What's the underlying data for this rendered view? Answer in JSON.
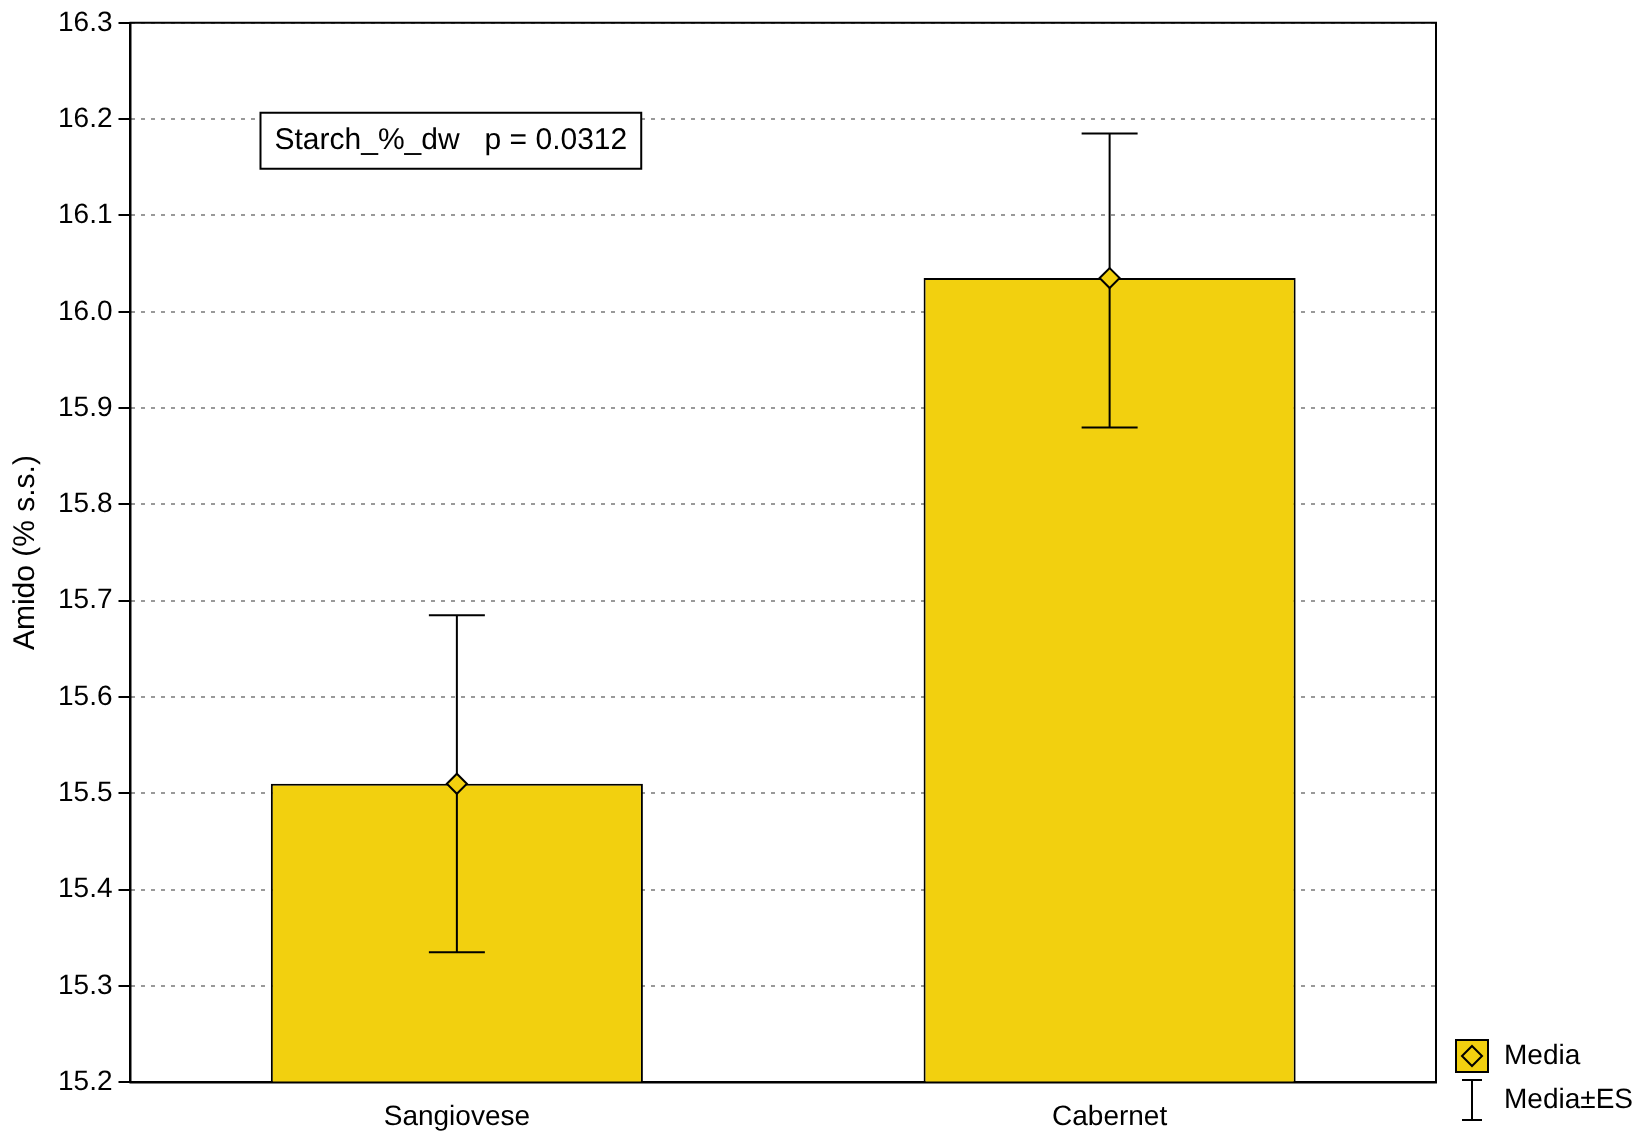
{
  "chart_data": {
    "type": "bar",
    "ylabel": "Amido (% s.s.)",
    "categories": [
      "Sangiovese",
      "Cabernet"
    ],
    "series": [
      {
        "name": "Media",
        "color": "#f2d00f",
        "values": [
          15.51,
          16.035
        ],
        "errors": [
          [
            15.335,
            15.685
          ],
          [
            15.88,
            16.185
          ]
        ]
      },
      {
        "type": "scatter",
        "color": "#f2d00f",
        "x": [
          "Sangiovese",
          "Cabernet"
        ],
        "values": [
          15.51,
          16.035
        ]
      }
    ],
    "ylim": [
      15.2,
      16.3
    ],
    "yticks": [
      15.2,
      15.3,
      15.4,
      15.5,
      15.6,
      15.7,
      15.8,
      15.9,
      {
        "value": 16,
        "label": "16.0"
      },
      16.1,
      16.2,
      16.3
    ],
    "grid": "y",
    "legend": "bottom right",
    "marker": "diamond",
    "annotations": [
      "Starch_%_dw   p = 0.0312",
      "Media±ES"
    ]
  }
}
